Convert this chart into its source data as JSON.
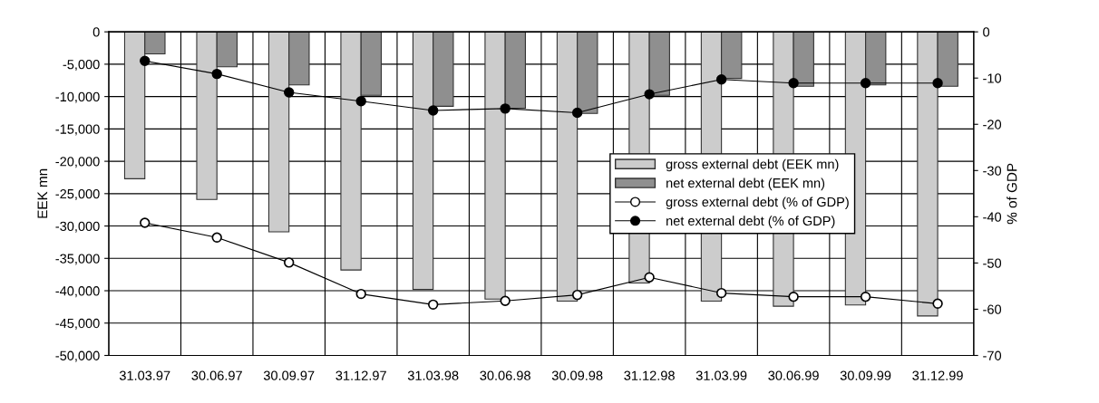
{
  "chart_data": {
    "type": "bar",
    "categories": [
      "31.03.97",
      "30.06.97",
      "30.09.97",
      "31.12.97",
      "31.03.98",
      "30.06.98",
      "30.09.98",
      "31.12.98",
      "31.03.99",
      "30.06.99",
      "30.09.99",
      "31.12.99"
    ],
    "ylabel": "EEK mn",
    "y2label": "% of GDP",
    "ylim": [
      -50000,
      0
    ],
    "yticks": [
      {
        "value": -50000,
        "label": "-50,000"
      },
      {
        "value": -45000,
        "label": "-45,000"
      },
      {
        "value": -40000,
        "label": "-40,000"
      },
      {
        "value": -35000,
        "label": "-35,000"
      },
      {
        "value": -30000,
        "label": "-30,000"
      },
      {
        "value": -25000,
        "label": "-25,000"
      },
      {
        "value": -20000,
        "label": "-20,000"
      },
      {
        "value": -15000,
        "label": "-15,000"
      },
      {
        "value": -10000,
        "label": "-10,000"
      },
      {
        "value": -5000,
        "label": "-5,000"
      },
      0
    ],
    "y2lim": [
      -70,
      0
    ],
    "y2ticks": [
      -70,
      -60,
      -50,
      -40,
      -30,
      -20,
      -10,
      0
    ],
    "grid": true,
    "legend": "center right",
    "series": [
      {
        "name": "gross external debt (EEK mn)",
        "color": "#cccccc",
        "values": [
          -22700,
          -25900,
          -30900,
          -36800,
          -39800,
          -41300,
          -41600,
          -38800,
          -41600,
          -42400,
          -42200,
          -43900
        ]
      },
      {
        "name": "net external debt (EEK mn)",
        "color": "#8f8f8f",
        "values": [
          -3400,
          -5400,
          -8200,
          -9800,
          -11500,
          -11800,
          -12600,
          -9800,
          -7200,
          -8400,
          -8200,
          -8400
        ]
      },
      {
        "name": "gross external debt (% of GDP)",
        "type": "line",
        "axis": "y2",
        "color": "#000000",
        "marker": "circle",
        "values": [
          -41.3,
          -44.5,
          -49.9,
          -56.7,
          -59.0,
          -58.2,
          -56.9,
          -53.1,
          -56.5,
          -57.3,
          -57.3,
          -58.8
        ]
      },
      {
        "name": "net external debt (% of GDP)",
        "type": "line",
        "axis": "y2",
        "color": "#000000",
        "marker": "circle",
        "values": [
          -6.3,
          -9.1,
          -13.1,
          -15.0,
          -17.0,
          -16.6,
          -17.5,
          -13.5,
          -10.3,
          -11.1,
          -11.1,
          -11.1
        ]
      }
    ]
  }
}
